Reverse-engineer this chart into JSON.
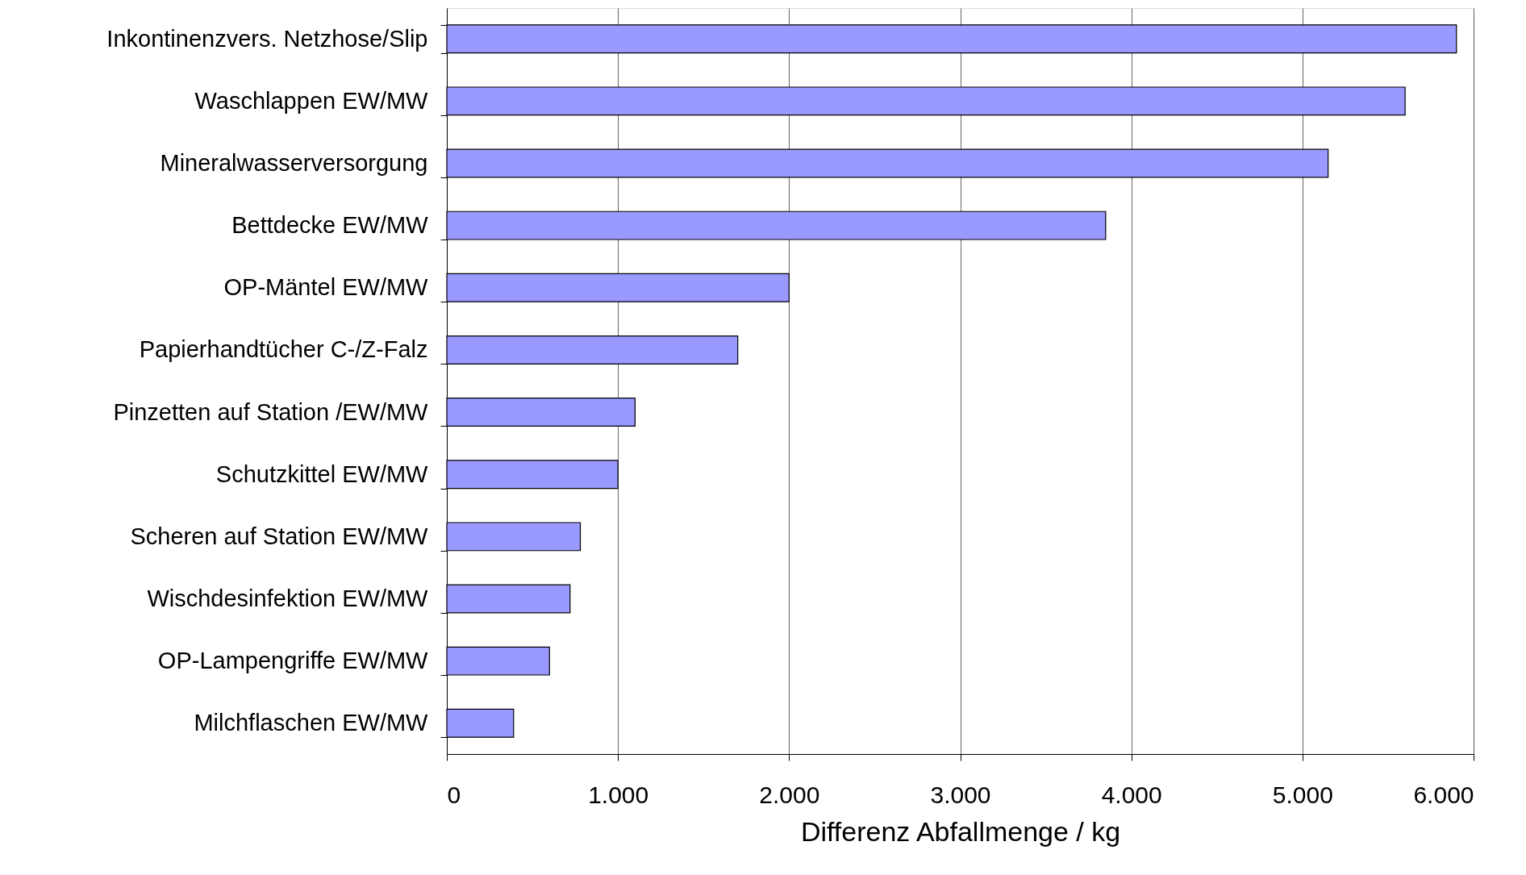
{
  "chart_data": {
    "type": "bar",
    "orientation": "horizontal",
    "xlabel": "Differenz Abfallmenge / kg",
    "categories": [
      "Inkontinenzvers. Netzhose/Slip",
      "Waschlappen EW/MW",
      "Mineralwasserversorgung",
      "Bettdecke EW/MW",
      "OP-Mäntel EW/MW",
      "Papierhandtücher C-/Z-Falz",
      "Pinzetten auf Station /EW/MW",
      "Schutzkittel EW/MW",
      "Scheren auf Station EW/MW",
      "Wischdesinfektion EW/MW",
      "OP-Lampengriffe EW/MW",
      "Milchflaschen  EW/MW"
    ],
    "values": [
      5900,
      5600,
      5150,
      3850,
      2000,
      1700,
      1100,
      1000,
      780,
      720,
      600,
      390
    ],
    "color": "#9999ff",
    "xlim": [
      0,
      6000
    ],
    "xticks": [
      0,
      {
        "value": 1000,
        "label": "1.000"
      },
      {
        "value": 2000,
        "label": "2.000"
      },
      {
        "value": 3000,
        "label": "3.000"
      },
      {
        "value": 4000,
        "label": "4.000"
      },
      {
        "value": 5000,
        "label": "5.000"
      },
      {
        "value": 6000,
        "label": "6.000"
      }
    ],
    "grid": "x"
  }
}
